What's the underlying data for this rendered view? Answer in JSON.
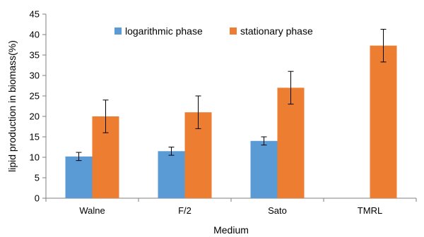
{
  "chart_data": {
    "type": "bar",
    "title": "",
    "xlabel": "Medium",
    "ylabel": "lipid production in biomass(%)",
    "ylim": [
      0,
      45
    ],
    "yticks": [
      0,
      5,
      10,
      15,
      20,
      25,
      30,
      35,
      40,
      45
    ],
    "categories": [
      "Walne",
      "F/2",
      "Sato",
      "TMRL"
    ],
    "series": [
      {
        "name": "logarithmic phase",
        "color": "#5B9BD5",
        "values": [
          10.2,
          11.5,
          14.0,
          null
        ],
        "errors": [
          1.0,
          1.0,
          1.0,
          null
        ]
      },
      {
        "name": "stationary phase",
        "color": "#ED7D31",
        "values": [
          20.0,
          21.0,
          27.0,
          37.3
        ],
        "errors": [
          4.0,
          4.0,
          4.0,
          4.0
        ]
      }
    ],
    "grid": false,
    "legend_position": "top"
  }
}
